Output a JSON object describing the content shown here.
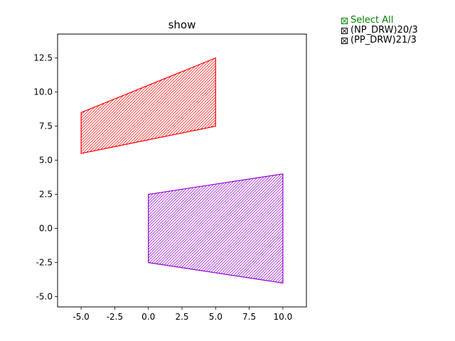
{
  "window": {
    "title": "show"
  },
  "legend": {
    "select_all_label": "Select All",
    "items": [
      {
        "label": "(NP_DRW)20/3",
        "checked": true
      },
      {
        "label": "(PP_DRW)21/3",
        "checked": true
      }
    ],
    "select_all_color": "#008000"
  },
  "chart_data": {
    "type": "polygon",
    "title": "show",
    "xlim": [
      -6.75,
      11.75
    ],
    "ylim": [
      -5.75,
      14.25
    ],
    "xticks": [
      "-5.0",
      "-2.5",
      "0.0",
      "2.5",
      "5.0",
      "7.5",
      "10.0"
    ],
    "xtick_values": [
      -5,
      -2.5,
      0,
      2.5,
      5,
      7.5,
      10
    ],
    "yticks": [
      "-5.0",
      "-2.5",
      "0.0",
      "2.5",
      "5.0",
      "7.5",
      "10.0",
      "12.5"
    ],
    "ytick_values": [
      -5,
      -2.5,
      0,
      2.5,
      5,
      7.5,
      10,
      12.5
    ],
    "grid": false,
    "series": [
      {
        "name": "(NP_DRW)20/3",
        "color": "#ff0000",
        "hatch": "////",
        "points": [
          [
            -5,
            5.5
          ],
          [
            5,
            7.5
          ],
          [
            5,
            12.5
          ],
          [
            -5,
            8.5
          ]
        ]
      },
      {
        "name": "(PP_DRW)21/3",
        "color": "#9400d3",
        "hatch": "////",
        "points": [
          [
            0,
            -2.5
          ],
          [
            10,
            -4
          ],
          [
            10,
            4
          ],
          [
            0,
            2.5
          ]
        ]
      }
    ]
  }
}
